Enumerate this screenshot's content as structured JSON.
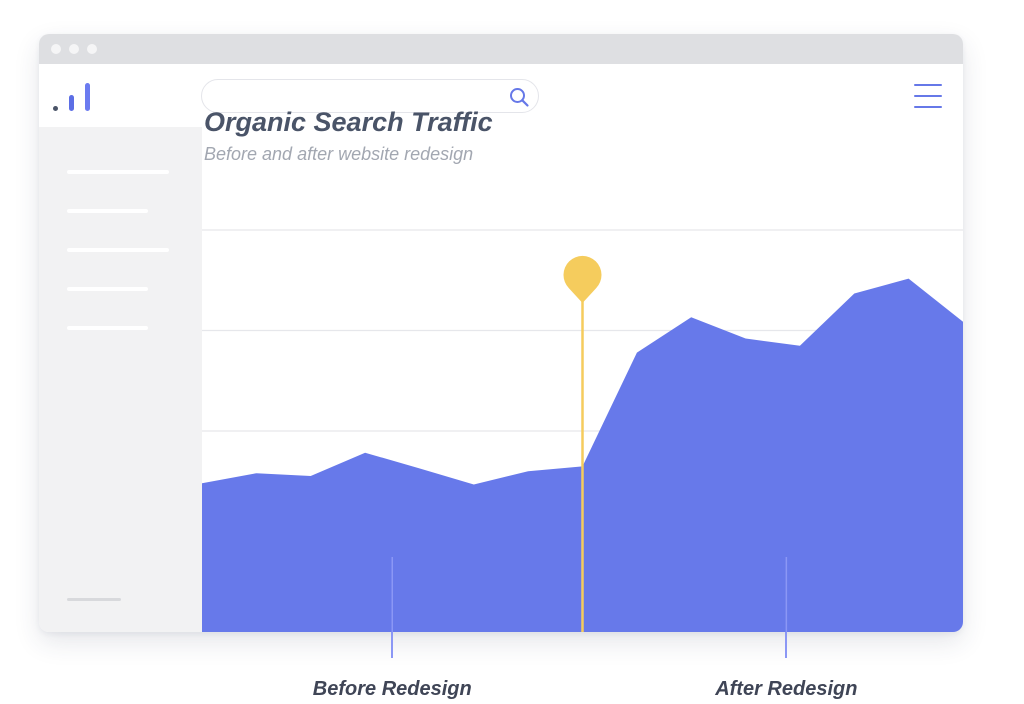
{
  "window": {
    "titlebar_dots_color": "#f5f5f6",
    "logo": {
      "icon": "bar-chart-icon",
      "colors": [
        "#4a5468",
        "#5c6ee5",
        "#6b7bf0"
      ]
    },
    "search": {
      "placeholder": "",
      "icon": "search-icon"
    },
    "menu": {
      "icon": "hamburger-menu-icon",
      "color": "#6678e8"
    },
    "sidebar": {
      "items": 5
    }
  },
  "chart_data": {
    "type": "area",
    "title": "Organic Search Traffic",
    "subtitle": "Before and after website redesign",
    "xlabel": "",
    "ylabel": "",
    "x": [
      0,
      1,
      2,
      3,
      4,
      5,
      6,
      7,
      8,
      9,
      10,
      11,
      12,
      13,
      14
    ],
    "series": [
      {
        "name": "",
        "color": "#6779ea",
        "values": [
          37.0,
          39.5,
          38.8,
          44.6,
          40.7,
          36.7,
          40.0,
          41.2,
          69.5,
          78.3,
          73.0,
          71.2,
          84.2,
          87.9,
          77.2
        ]
      }
    ],
    "ylim": [
      0,
      100
    ],
    "gridlines": [
      50,
      75,
      100
    ],
    "grid": true,
    "marker": {
      "x": 7,
      "color": "#f5cc5d",
      "icon": "map-pin-icon"
    },
    "annotations": [
      {
        "label": "Before Redesign",
        "x": 3.5
      },
      {
        "label": "After Redesign",
        "x": 10.75
      }
    ]
  }
}
